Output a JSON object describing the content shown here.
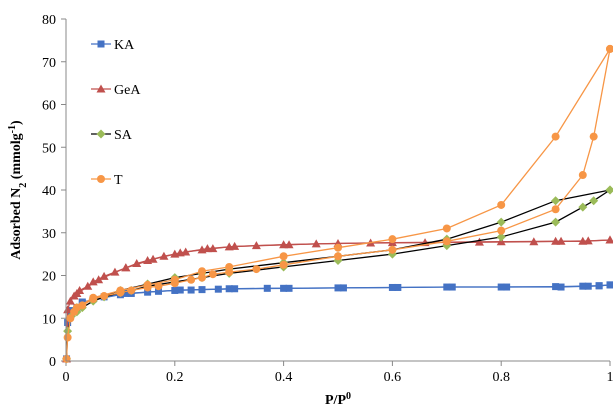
{
  "chart_data": {
    "type": "scatter",
    "title": "",
    "xlabel": "P/P",
    "xlabel_sup": "0",
    "ylabel": "Adsorbed N",
    "ylabel_sub": "2",
    "ylabel_unit": " (mmolg",
    "ylabel_unit_sup": "-1",
    "ylabel_close": ")",
    "xlim": [
      0,
      1
    ],
    "ylim": [
      0,
      80
    ],
    "xticks": [
      0,
      0.2,
      0.4,
      0.6,
      0.8,
      1
    ],
    "xtick_labels": [
      "0",
      "0.2",
      "0.4",
      "0.6",
      "0.8",
      "1"
    ],
    "yticks": [
      0,
      10,
      20,
      30,
      40,
      50,
      60,
      70,
      80
    ],
    "ytick_labels": [
      "0",
      "10",
      "20",
      "30",
      "40",
      "50",
      "60",
      "70",
      "80"
    ],
    "grid": false,
    "legend_position": "top-left",
    "series": [
      {
        "name": "KA",
        "color": "#4472C4",
        "marker": "square",
        "line_color": "#4472C4",
        "branches": [
          [
            [
              0.001,
              0.5
            ],
            [
              0.003,
              9
            ],
            [
              0.01,
              11.5
            ],
            [
              0.02,
              12.5
            ],
            [
              0.03,
              13.5
            ],
            [
              0.05,
              14.5
            ],
            [
              0.07,
              15
            ],
            [
              0.1,
              15.5
            ],
            [
              0.12,
              15.8
            ],
            [
              0.15,
              16.1
            ],
            [
              0.17,
              16.3
            ],
            [
              0.2,
              16.5
            ],
            [
              0.23,
              16.6
            ],
            [
              0.25,
              16.7
            ],
            [
              0.28,
              16.8
            ],
            [
              0.3,
              16.9
            ],
            [
              0.37,
              17
            ],
            [
              0.4,
              17
            ],
            [
              0.5,
              17.1
            ],
            [
              0.6,
              17.2
            ],
            [
              0.7,
              17.3
            ],
            [
              0.8,
              17.3
            ],
            [
              0.9,
              17.4
            ],
            [
              0.95,
              17.5
            ],
            [
              0.98,
              17.6
            ],
            [
              1.0,
              17.8
            ]
          ],
          [
            [
              1.0,
              17.8
            ],
            [
              0.98,
              17.6
            ],
            [
              0.96,
              17.5
            ],
            [
              0.91,
              17.3
            ],
            [
              0.81,
              17.3
            ],
            [
              0.71,
              17.3
            ],
            [
              0.61,
              17.2
            ],
            [
              0.51,
              17.1
            ],
            [
              0.41,
              17
            ],
            [
              0.31,
              16.9
            ],
            [
              0.21,
              16.6
            ],
            [
              0.11,
              15.8
            ],
            [
              0.03,
              13.8
            ],
            [
              0.01,
              11.8
            ]
          ]
        ]
      },
      {
        "name": "GeA",
        "color": "#C0504D",
        "marker": "triangle",
        "line_color": "#C0504D",
        "branches": [
          [
            [
              0.001,
              0.5
            ],
            [
              0.003,
              12
            ],
            [
              0.008,
              14
            ],
            [
              0.015,
              15.2
            ],
            [
              0.025,
              16.5
            ],
            [
              0.04,
              17.5
            ],
            [
              0.05,
              18.5
            ],
            [
              0.07,
              19.8
            ],
            [
              0.09,
              20.8
            ],
            [
              0.11,
              21.8
            ],
            [
              0.13,
              22.8
            ],
            [
              0.15,
              23.5
            ],
            [
              0.18,
              24.5
            ],
            [
              0.2,
              25
            ],
            [
              0.22,
              25.5
            ],
            [
              0.25,
              26
            ],
            [
              0.27,
              26.3
            ],
            [
              0.3,
              26.7
            ],
            [
              0.35,
              27
            ],
            [
              0.4,
              27.2
            ],
            [
              0.5,
              27.5
            ],
            [
              0.6,
              27.7
            ],
            [
              0.7,
              27.8
            ],
            [
              0.8,
              27.9
            ],
            [
              0.9,
              28
            ],
            [
              0.95,
              28
            ],
            [
              1.0,
              28.3
            ]
          ],
          [
            [
              1.0,
              28.3
            ],
            [
              0.96,
              28.1
            ],
            [
              0.91,
              28
            ],
            [
              0.86,
              27.9
            ],
            [
              0.76,
              27.8
            ],
            [
              0.66,
              27.7
            ],
            [
              0.56,
              27.6
            ],
            [
              0.46,
              27.4
            ],
            [
              0.41,
              27.2
            ],
            [
              0.31,
              26.8
            ],
            [
              0.26,
              26.3
            ],
            [
              0.21,
              25.3
            ],
            [
              0.16,
              23.8
            ],
            [
              0.11,
              21.8
            ],
            [
              0.06,
              19
            ],
            [
              0.02,
              15.8
            ]
          ]
        ]
      },
      {
        "name": "SA",
        "color": "#9BBB59",
        "marker": "diamond",
        "line_color": "#000000",
        "branches": [
          [
            [
              0.001,
              0.5
            ],
            [
              0.003,
              7
            ],
            [
              0.01,
              10.5
            ],
            [
              0.02,
              11.5
            ],
            [
              0.03,
              12.5
            ],
            [
              0.05,
              14
            ],
            [
              0.07,
              15
            ],
            [
              0.1,
              16
            ],
            [
              0.12,
              16.5
            ],
            [
              0.15,
              17.5
            ],
            [
              0.2,
              18.5
            ],
            [
              0.25,
              19.5
            ],
            [
              0.3,
              20.5
            ],
            [
              0.4,
              22
            ],
            [
              0.5,
              23.5
            ],
            [
              0.6,
              25
            ],
            [
              0.7,
              27
            ],
            [
              0.8,
              29
            ],
            [
              0.9,
              32.5
            ],
            [
              0.95,
              36
            ],
            [
              0.97,
              37.5
            ],
            [
              1.0,
              40
            ]
          ],
          [
            [
              1.0,
              40
            ],
            [
              0.9,
              37.5
            ],
            [
              0.8,
              32.5
            ],
            [
              0.7,
              28.5
            ],
            [
              0.6,
              26
            ],
            [
              0.5,
              24.5
            ],
            [
              0.4,
              23
            ],
            [
              0.3,
              21.5
            ],
            [
              0.25,
              20.5
            ],
            [
              0.2,
              19.5
            ],
            [
              0.15,
              18
            ],
            [
              0.1,
              16.5
            ],
            [
              0.05,
              14.5
            ],
            [
              0.02,
              12.5
            ]
          ]
        ]
      },
      {
        "name": "T",
        "color": "#F79646",
        "marker": "circle",
        "line_color": "#F79646",
        "branches": [
          [
            [
              0.001,
              0.5
            ],
            [
              0.003,
              5.5
            ],
            [
              0.008,
              10
            ],
            [
              0.015,
              11.5
            ],
            [
              0.03,
              13
            ],
            [
              0.05,
              14.5
            ],
            [
              0.07,
              15.2
            ],
            [
              0.1,
              16
            ],
            [
              0.12,
              16.5
            ],
            [
              0.15,
              17.2
            ],
            [
              0.17,
              17.5
            ],
            [
              0.2,
              18.2
            ],
            [
              0.23,
              19
            ],
            [
              0.25,
              19.5
            ],
            [
              0.27,
              20.3
            ],
            [
              0.3,
              20.8
            ],
            [
              0.35,
              21.5
            ],
            [
              0.4,
              22.5
            ],
            [
              0.5,
              24.5
            ],
            [
              0.6,
              26
            ],
            [
              0.7,
              28
            ],
            [
              0.8,
              30.5
            ],
            [
              0.9,
              35.5
            ],
            [
              0.95,
              43.5
            ],
            [
              0.97,
              52.5
            ],
            [
              1.0,
              73
            ]
          ],
          [
            [
              1.0,
              73
            ],
            [
              0.9,
              52.5
            ],
            [
              0.8,
              36.5
            ],
            [
              0.7,
              31
            ],
            [
              0.6,
              28.5
            ],
            [
              0.5,
              26.5
            ],
            [
              0.4,
              24.5
            ],
            [
              0.3,
              22
            ],
            [
              0.25,
              21
            ],
            [
              0.2,
              19
            ],
            [
              0.15,
              17.8
            ],
            [
              0.1,
              16.5
            ],
            [
              0.05,
              14.8
            ],
            [
              0.02,
              12.5
            ]
          ]
        ]
      }
    ]
  }
}
